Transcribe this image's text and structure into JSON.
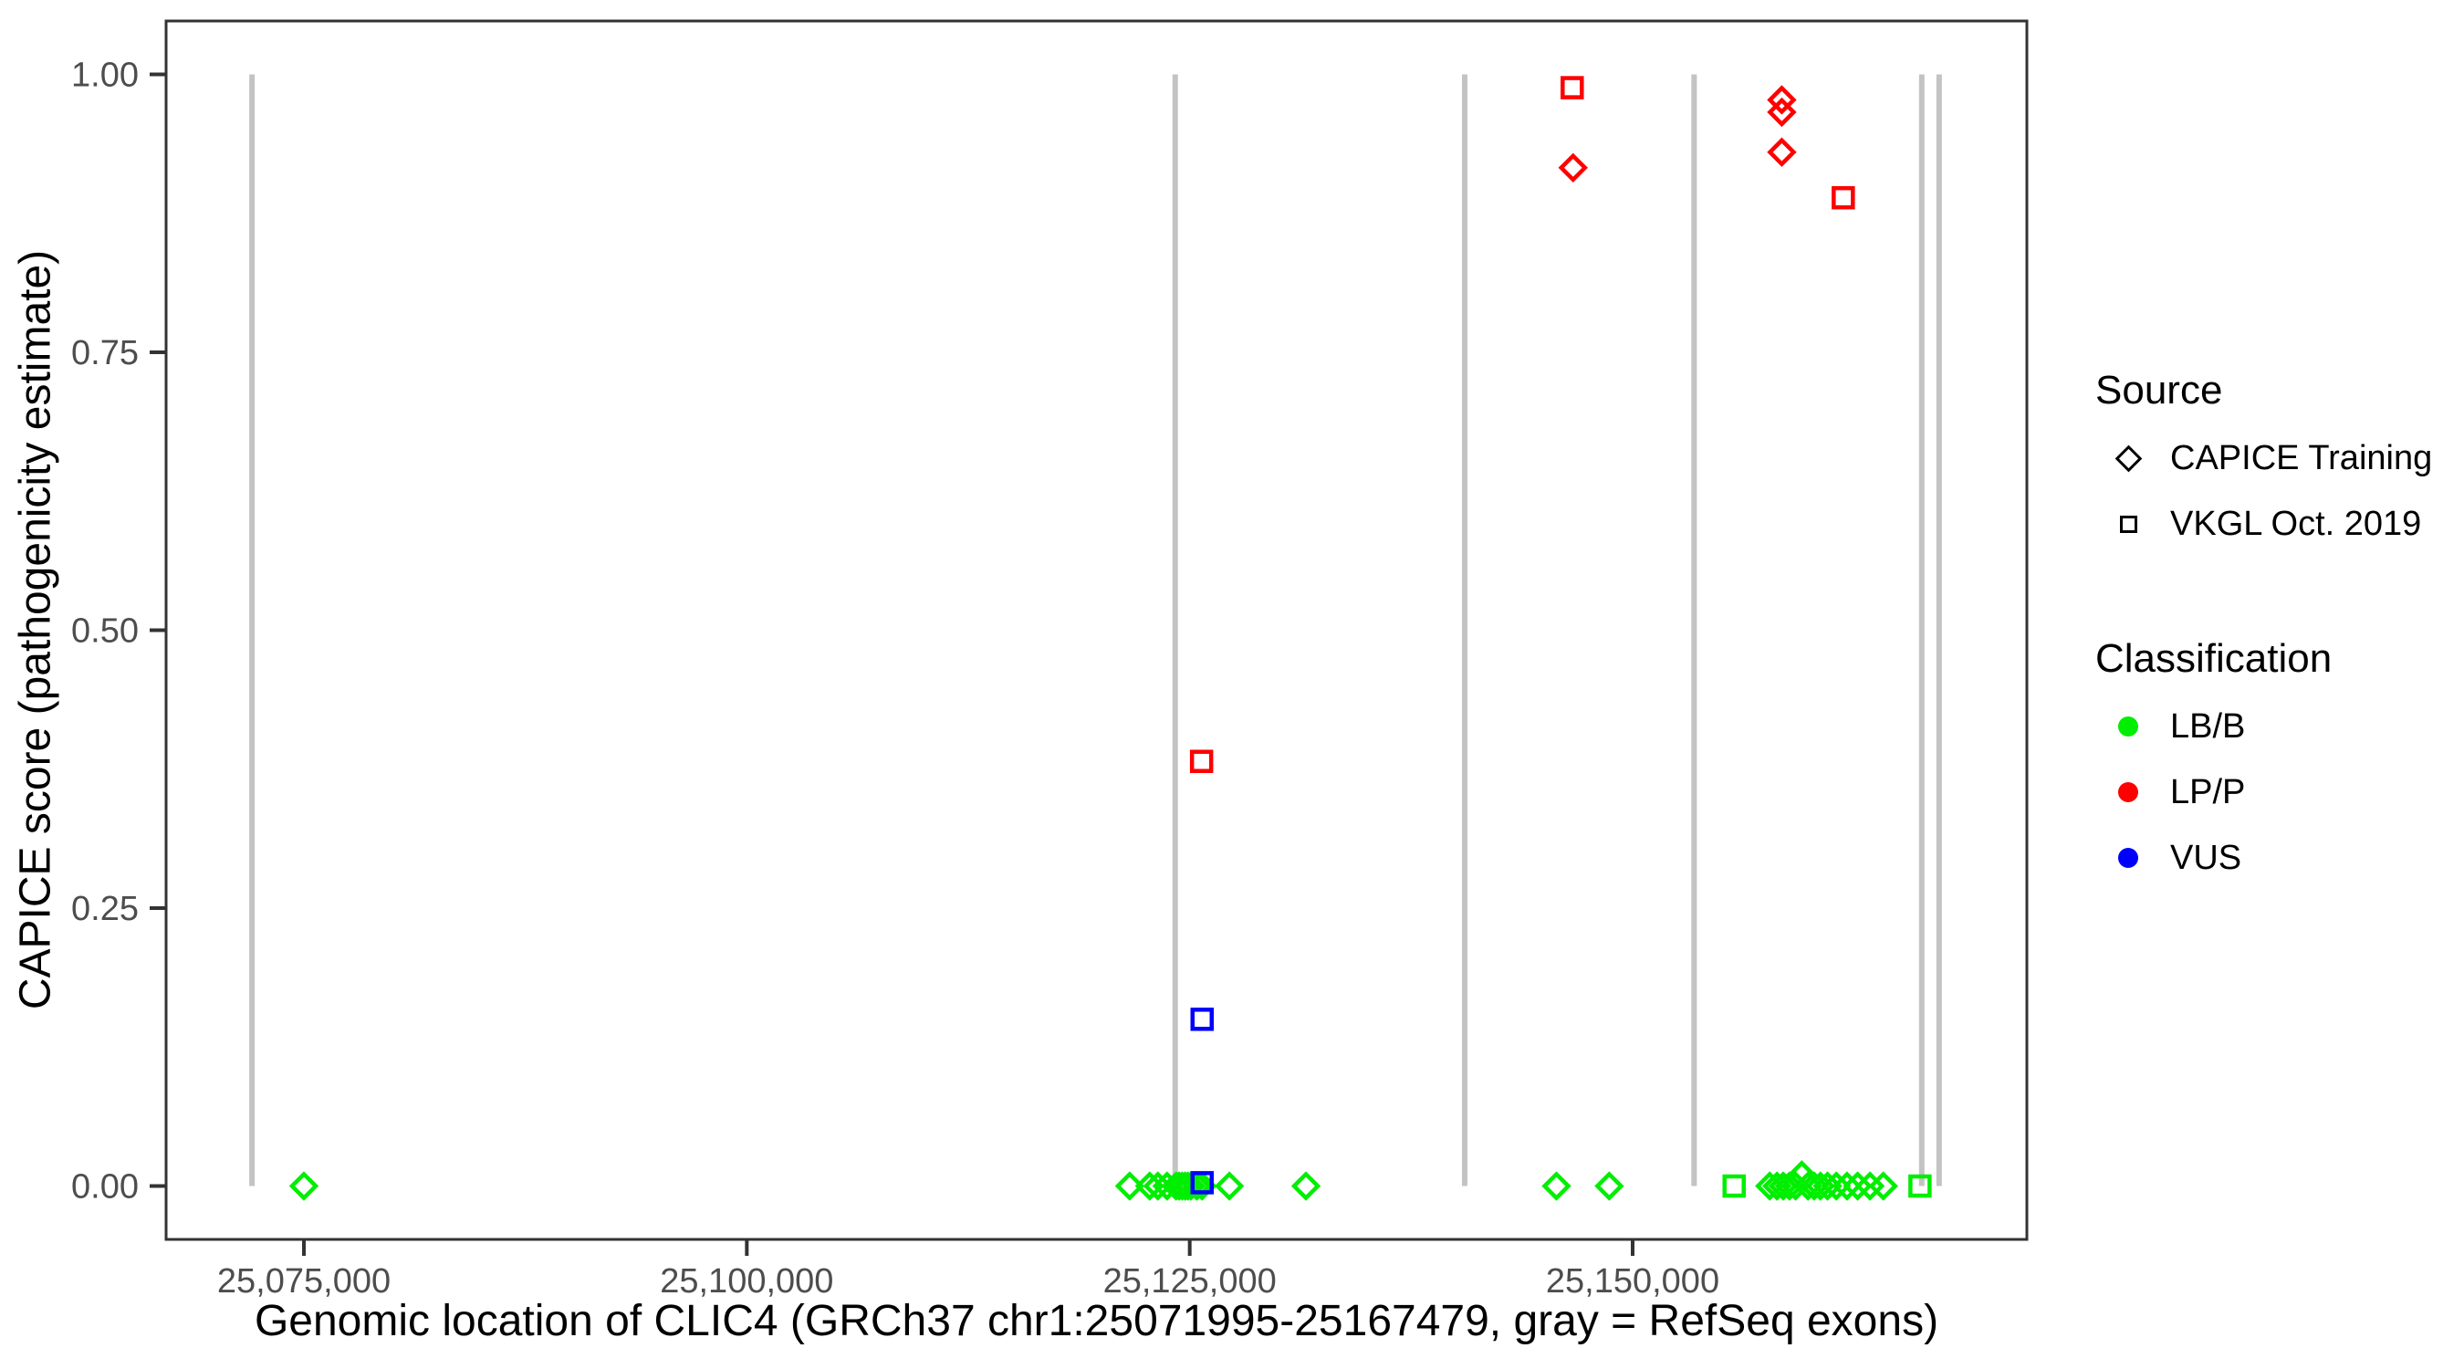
{
  "figure": {
    "xlabel": "Genomic location of CLIC4 (GRCh37 chr1:25071995-25167479, gray = RefSeq exons)",
    "ylabel": "CAPICE score (pathogenicity estimate)"
  },
  "legend": {
    "source": {
      "title": "Source",
      "items": [
        {
          "label": "CAPICE Training",
          "marker": "diamond"
        },
        {
          "label": "VKGL Oct. 2019",
          "marker": "square"
        }
      ]
    },
    "classification": {
      "title": "Classification",
      "items": [
        {
          "label": "LB/B",
          "color": "#00EE00"
        },
        {
          "label": "LP/P",
          "color": "#FF0000"
        },
        {
          "label": "VUS",
          "color": "#0000FF"
        }
      ]
    }
  },
  "colors": {
    "lbb": "#00EE00",
    "lpp": "#FF0000",
    "vus": "#0000FF",
    "exon_gray": "#C3C3C3",
    "axis_line": "#333333",
    "tick_text": "#4D4D4D"
  },
  "chart_data": {
    "type": "scatter",
    "title": "",
    "xlabel": "Genomic location of CLIC4 (GRCh37 chr1:25071995-25167479, gray = RefSeq exons)",
    "ylabel": "CAPICE score (pathogenicity estimate)",
    "x_data_range": [
      25071995,
      25167479
    ],
    "x_domain": [
      25067221,
      25172253
    ],
    "y_domain": [
      -0.048,
      1.048
    ],
    "ylim": [
      0,
      1
    ],
    "grid": false,
    "legend_position": "right",
    "x_ticks": [
      {
        "bp": 25075000,
        "label": "25,075,000"
      },
      {
        "bp": 25100000,
        "label": "25,100,000"
      },
      {
        "bp": 25125000,
        "label": "25,125,000"
      },
      {
        "bp": 25150000,
        "label": "25,150,000"
      }
    ],
    "y_ticks": [
      {
        "value": 0.0,
        "label": "0.00"
      },
      {
        "value": 0.25,
        "label": "0.25"
      },
      {
        "value": 0.5,
        "label": "0.50"
      },
      {
        "value": 0.75,
        "label": "0.75"
      },
      {
        "value": 1.0,
        "label": "1.00"
      }
    ],
    "refseq_exon_lines_bp": [
      25072070,
      25124180,
      25140520,
      25153470,
      25166320,
      25167300
    ],
    "exon_line_value_span": [
      0,
      1
    ],
    "series": [
      {
        "name": "LB/B - CAPICE Training",
        "classification": "LB/B",
        "source": "CAPICE Training",
        "marker": "diamond",
        "color": "#00EE00",
        "points": [
          [
            25075000,
            0
          ],
          [
            25121610,
            0
          ],
          [
            25122740,
            0
          ],
          [
            25123200,
            0
          ],
          [
            25123720,
            0
          ],
          [
            25124230,
            0
          ],
          [
            25124400,
            0
          ],
          [
            25124570,
            0
          ],
          [
            25124740,
            0
          ],
          [
            25124900,
            0
          ],
          [
            25125060,
            0
          ],
          [
            25125400,
            0
          ],
          [
            25125700,
            0
          ],
          [
            25127240,
            0
          ],
          [
            25131560,
            0
          ],
          [
            25145700,
            0
          ],
          [
            25148680,
            0
          ],
          [
            25157740,
            0
          ],
          [
            25158150,
            0
          ],
          [
            25158500,
            0
          ],
          [
            25158850,
            0
          ],
          [
            25159200,
            0
          ],
          [
            25159550,
            0.01
          ],
          [
            25159900,
            0
          ],
          [
            25160250,
            0
          ],
          [
            25160600,
            0
          ],
          [
            25161000,
            0
          ],
          [
            25161500,
            0
          ],
          [
            25162100,
            0
          ],
          [
            25162700,
            0
          ],
          [
            25163400,
            0
          ],
          [
            25164150,
            0
          ]
        ]
      },
      {
        "name": "LB/B - VKGL Oct. 2019",
        "classification": "LB/B",
        "source": "VKGL Oct. 2019",
        "marker": "square",
        "color": "#00EE00",
        "points": [
          [
            25155730,
            0
          ],
          [
            25166220,
            0
          ]
        ]
      },
      {
        "name": "LP/P - CAPICE Training",
        "classification": "LP/P",
        "source": "CAPICE Training",
        "marker": "diamond",
        "color": "#FF0000",
        "points": [
          [
            25146640,
            0.916
          ],
          [
            25158420,
            0.977
          ],
          [
            25158420,
            0.966
          ],
          [
            25158420,
            0.93
          ]
        ]
      },
      {
        "name": "LP/P - VKGL Oct. 2019",
        "classification": "LP/P",
        "source": "VKGL Oct. 2019",
        "marker": "square",
        "color": "#FF0000",
        "points": [
          [
            25146590,
            0.988
          ],
          [
            25161890,
            0.889
          ],
          [
            25125670,
            0.382
          ]
        ]
      },
      {
        "name": "VUS - VKGL Oct. 2019",
        "classification": "VUS",
        "source": "VKGL Oct. 2019",
        "marker": "square",
        "color": "#0000FF",
        "points": [
          [
            25125700,
            0.15
          ],
          [
            25125700,
            0.003
          ]
        ]
      }
    ]
  }
}
